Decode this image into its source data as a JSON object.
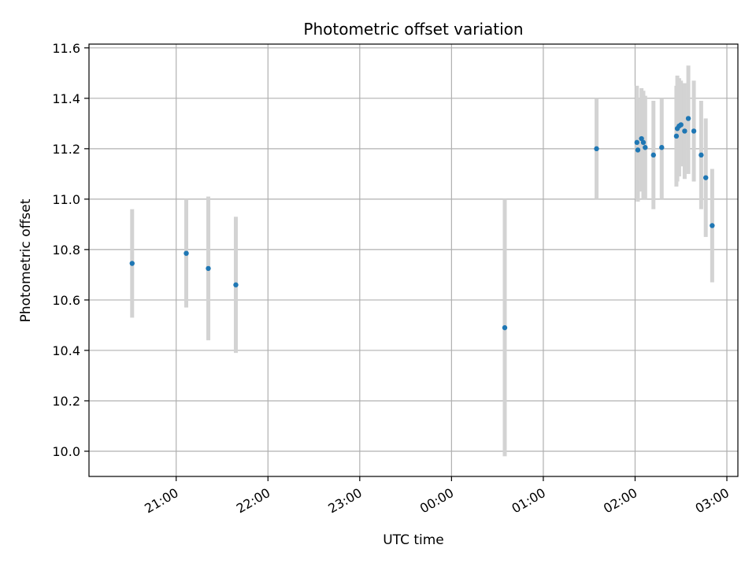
{
  "chart_data": {
    "type": "scatter",
    "title": "Photometric offset variation",
    "xlabel": "UTC time",
    "ylabel": "Photometric offset",
    "grid": true,
    "xlim_hours": [
      20.05,
      27.12
    ],
    "ylim": [
      9.9,
      11.615
    ],
    "x_ticks": [
      {
        "h": 21,
        "label": "21:00"
      },
      {
        "h": 22,
        "label": "22:00"
      },
      {
        "h": 23,
        "label": "23:00"
      },
      {
        "h": 24,
        "label": "00:00"
      },
      {
        "h": 25,
        "label": "01:00"
      },
      {
        "h": 26,
        "label": "02:00"
      },
      {
        "h": 27,
        "label": "03:00"
      }
    ],
    "y_ticks": [
      {
        "v": 10.0,
        "label": "10.0"
      },
      {
        "v": 10.2,
        "label": "10.2"
      },
      {
        "v": 10.4,
        "label": "10.4"
      },
      {
        "v": 10.6,
        "label": "10.6"
      },
      {
        "v": 10.8,
        "label": "10.8"
      },
      {
        "v": 11.0,
        "label": "11.0"
      },
      {
        "v": 11.2,
        "label": "11.2"
      },
      {
        "v": 11.4,
        "label": "11.4"
      },
      {
        "v": 11.6,
        "label": "11.6"
      }
    ],
    "point_color": "#1f77b4",
    "errorbar_color": "#d3d3d3",
    "points": [
      {
        "t": 20.52,
        "y": 10.745,
        "lo": 10.53,
        "hi": 10.96
      },
      {
        "t": 21.11,
        "y": 10.785,
        "lo": 10.57,
        "hi": 11.0
      },
      {
        "t": 21.35,
        "y": 10.725,
        "lo": 10.44,
        "hi": 11.01
      },
      {
        "t": 21.65,
        "y": 10.66,
        "lo": 10.39,
        "hi": 10.93
      },
      {
        "t": 24.58,
        "y": 10.49,
        "lo": 9.98,
        "hi": 11.0
      },
      {
        "t": 25.58,
        "y": 11.2,
        "lo": 11.0,
        "hi": 11.4
      },
      {
        "t": 26.02,
        "y": 11.225,
        "lo": 11.0,
        "hi": 11.45
      },
      {
        "t": 26.03,
        "y": 11.195,
        "lo": 10.99,
        "hi": 11.4
      },
      {
        "t": 26.07,
        "y": 11.24,
        "lo": 11.03,
        "hi": 11.44
      },
      {
        "t": 26.09,
        "y": 11.225,
        "lo": 11.0,
        "hi": 11.43
      },
      {
        "t": 26.11,
        "y": 11.205,
        "lo": 11.0,
        "hi": 11.41
      },
      {
        "t": 26.2,
        "y": 11.175,
        "lo": 10.96,
        "hi": 11.39
      },
      {
        "t": 26.29,
        "y": 11.205,
        "lo": 11.0,
        "hi": 11.4
      },
      {
        "t": 26.45,
        "y": 11.25,
        "lo": 11.05,
        "hi": 11.45
      },
      {
        "t": 26.46,
        "y": 11.28,
        "lo": 11.07,
        "hi": 11.49
      },
      {
        "t": 26.48,
        "y": 11.29,
        "lo": 11.09,
        "hi": 11.48
      },
      {
        "t": 26.5,
        "y": 11.295,
        "lo": 11.13,
        "hi": 11.47
      },
      {
        "t": 26.54,
        "y": 11.27,
        "lo": 11.08,
        "hi": 11.46
      },
      {
        "t": 26.58,
        "y": 11.32,
        "lo": 11.1,
        "hi": 11.53
      },
      {
        "t": 26.64,
        "y": 11.27,
        "lo": 11.07,
        "hi": 11.47
      },
      {
        "t": 26.72,
        "y": 11.175,
        "lo": 10.96,
        "hi": 11.39
      },
      {
        "t": 26.77,
        "y": 11.085,
        "lo": 10.85,
        "hi": 11.32
      },
      {
        "t": 26.84,
        "y": 10.895,
        "lo": 10.67,
        "hi": 11.12
      }
    ]
  }
}
